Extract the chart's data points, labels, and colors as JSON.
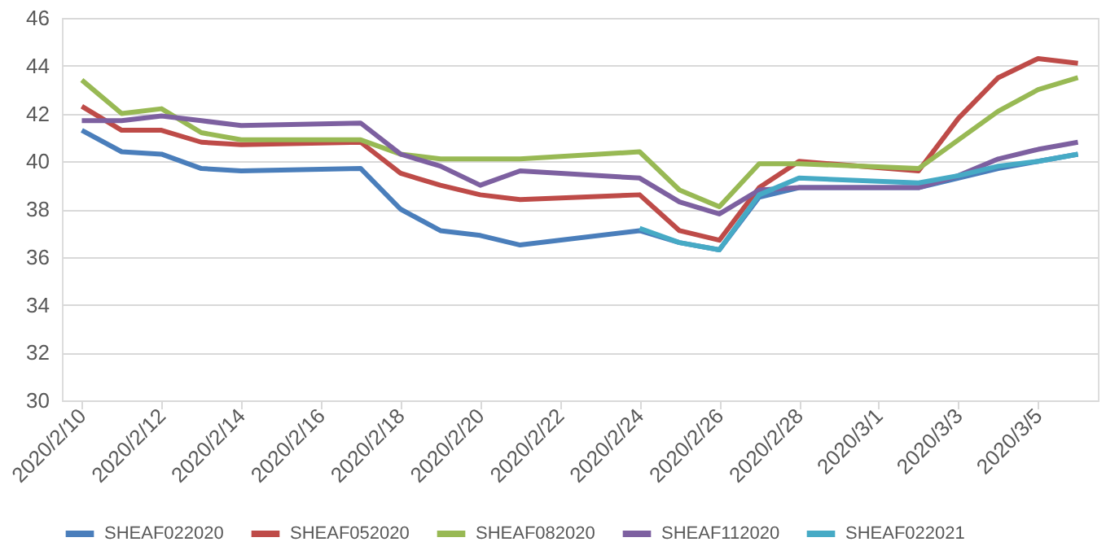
{
  "chart_data": {
    "type": "line",
    "x": [
      "2020-02-10",
      "2020-02-11",
      "2020-02-12",
      "2020-02-13",
      "2020-02-14",
      "2020-02-17",
      "2020-02-18",
      "2020-02-19",
      "2020-02-20",
      "2020-02-21",
      "2020-02-24",
      "2020-02-25",
      "2020-02-26",
      "2020-02-27",
      "2020-02-28",
      "2020-03-02",
      "2020-03-03",
      "2020-03-04",
      "2020-03-05",
      "2020-03-06"
    ],
    "series": [
      {
        "name": "SHEAF022020",
        "color": "#4a7ebb",
        "values": [
          41.3,
          40.4,
          40.3,
          39.7,
          39.6,
          39.7,
          38.0,
          37.1,
          36.9,
          36.5,
          37.1,
          36.6,
          36.3,
          38.5,
          38.9,
          38.9,
          39.3,
          39.7,
          40.0,
          40.3
        ]
      },
      {
        "name": "SHEAF052020",
        "color": "#be4b48",
        "values": [
          42.3,
          41.3,
          41.3,
          40.8,
          40.7,
          40.8,
          39.5,
          39.0,
          38.6,
          38.4,
          38.6,
          37.1,
          36.7,
          38.9,
          40.0,
          39.6,
          41.8,
          43.5,
          44.3,
          44.1
        ]
      },
      {
        "name": "SHEAF082020",
        "color": "#98b954",
        "values": [
          43.4,
          42.0,
          42.2,
          41.2,
          40.9,
          40.9,
          40.3,
          40.1,
          40.1,
          40.1,
          40.4,
          38.8,
          38.1,
          39.9,
          39.9,
          39.7,
          40.9,
          42.1,
          43.0,
          43.5
        ]
      },
      {
        "name": "SHEAF112020",
        "color": "#7d60a0",
        "values": [
          41.7,
          41.7,
          41.9,
          41.7,
          41.5,
          41.6,
          40.3,
          39.8,
          39.0,
          39.6,
          39.3,
          38.3,
          37.8,
          38.8,
          38.9,
          38.9,
          39.4,
          40.1,
          40.5,
          40.8
        ]
      },
      {
        "name": "SHEAF022021",
        "color": "#46aac5",
        "values": [
          null,
          null,
          null,
          null,
          null,
          null,
          null,
          null,
          null,
          null,
          37.2,
          36.6,
          36.3,
          38.6,
          39.3,
          39.1,
          39.4,
          39.8,
          40.0,
          40.3
        ]
      }
    ],
    "xlim": [
      "2020-02-09T12:00",
      "2020-03-06T12:00"
    ],
    "xticks": [
      {
        "value": "2020-02-10",
        "label": "2020/2/10"
      },
      {
        "value": "2020-02-12",
        "label": "2020/2/12"
      },
      {
        "value": "2020-02-14",
        "label": "2020/2/14"
      },
      {
        "value": "2020-02-16",
        "label": "2020/2/16"
      },
      {
        "value": "2020-02-18",
        "label": "2020/2/18"
      },
      {
        "value": "2020-02-20",
        "label": "2020/2/20"
      },
      {
        "value": "2020-02-22",
        "label": "2020/2/22"
      },
      {
        "value": "2020-02-24",
        "label": "2020/2/24"
      },
      {
        "value": "2020-02-26",
        "label": "2020/2/26"
      },
      {
        "value": "2020-02-28",
        "label": "2020/2/28"
      },
      {
        "value": "2020-03-01",
        "label": "2020/3/1"
      },
      {
        "value": "2020-03-03",
        "label": "2020/3/3"
      },
      {
        "value": "2020-03-05",
        "label": "2020/3/5"
      }
    ],
    "ylim": [
      30,
      46
    ],
    "yticks": [
      30,
      32,
      34,
      36,
      38,
      40,
      42,
      44,
      46
    ],
    "grid": "y",
    "legend": "bottom",
    "marker": "none",
    "line_style": "solid"
  }
}
